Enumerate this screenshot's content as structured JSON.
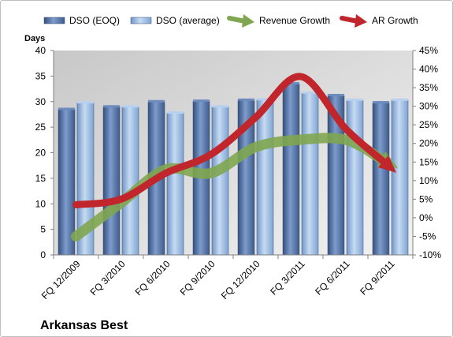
{
  "chart_data": {
    "type": "bar",
    "company_name": "Arkansas Best",
    "left_axis_label": "Days",
    "categories": [
      "FQ 12/2009",
      "FQ 3/2010",
      "FQ 6/2010",
      "FQ 9/2010",
      "FQ 12/2010",
      "FQ 3/2011",
      "FQ 6/2011",
      "FQ 9/2011"
    ],
    "y_left": {
      "min": 0,
      "max": 40,
      "ticks": [
        "0",
        "5",
        "10",
        "15",
        "20",
        "25",
        "30",
        "35",
        "40"
      ]
    },
    "y_right": {
      "min": -10,
      "max": 45,
      "ticks": [
        "-10%",
        "-5%",
        "0%",
        "5%",
        "10%",
        "15%",
        "20%",
        "25%",
        "30%",
        "35%",
        "40%",
        "45%"
      ]
    },
    "bar_series": [
      {
        "name": "DSO (EOQ)",
        "color": "#4f6fa0",
        "values": [
          28.5,
          29.0,
          30.0,
          30.1,
          30.3,
          33.5,
          31.2,
          29.8
        ]
      },
      {
        "name": "DSO (average)",
        "color": "#95b6df",
        "values": [
          29.8,
          29.0,
          27.8,
          29.0,
          30.4,
          31.7,
          30.3,
          30.3
        ]
      }
    ],
    "line_series": [
      {
        "name": "Revenue Growth",
        "color": "#7fa650",
        "values": [
          -5.0,
          4.0,
          13.0,
          12.0,
          19.0,
          21.0,
          21.0,
          14.5
        ]
      },
      {
        "name": "AR Growth",
        "color": "#c0262c",
        "values": [
          3.5,
          5.0,
          12.0,
          17.0,
          27.0,
          38.0,
          24.0,
          13.5
        ]
      }
    ],
    "grid": false,
    "legend_position": "top"
  }
}
